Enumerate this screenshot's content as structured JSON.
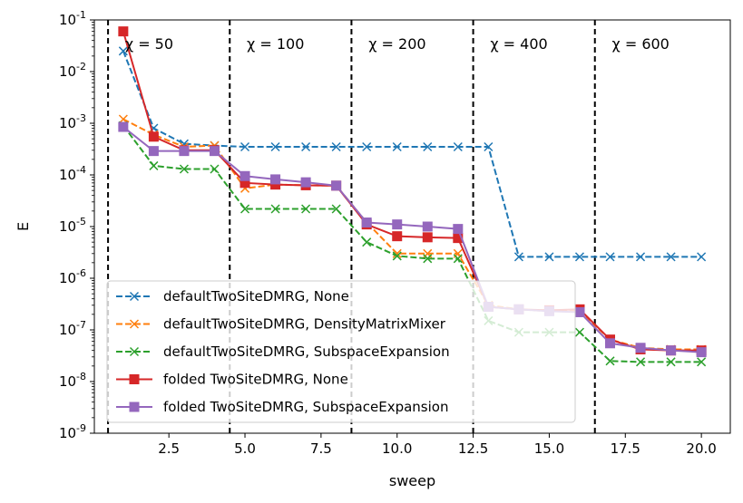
{
  "chart_data": {
    "type": "line",
    "xlabel": "sweep",
    "ylabel": "E",
    "xlim": [
      0.05,
      20.95
    ],
    "ylim": [
      1e-09,
      0.1
    ],
    "yscale": "log",
    "grid": false,
    "legend_position": "lower-left",
    "x_ticks": [
      2.5,
      5.0,
      7.5,
      10.0,
      12.5,
      15.0,
      17.5,
      20.0
    ],
    "x_tick_labels": [
      "2.5",
      "5.0",
      "7.5",
      "10.0",
      "12.5",
      "15.0",
      "17.5",
      "20.0"
    ],
    "y_ticks": [
      1e-09,
      1e-08,
      1e-07,
      1e-06,
      1e-05,
      0.0001,
      0.001,
      0.01,
      0.1
    ],
    "y_tick_exponents": [
      "-9",
      "-8",
      "-7",
      "-6",
      "-5",
      "-4",
      "-3",
      "-2",
      "-1"
    ],
    "vlines": [
      0.5,
      4.5,
      8.5,
      12.5,
      16.5
    ],
    "annotations": [
      {
        "x": 1.0,
        "text": "χ = 50"
      },
      {
        "x": 5.0,
        "text": "χ = 100"
      },
      {
        "x": 9.0,
        "text": "χ = 200"
      },
      {
        "x": 13.0,
        "text": "χ = 400"
      },
      {
        "x": 17.0,
        "text": "χ = 600"
      }
    ],
    "series": [
      {
        "name": "defaultTwoSiteDMRG, None",
        "color": "#1f77b4",
        "linestyle": "dashed",
        "marker": "x",
        "x": [
          1,
          2,
          3,
          4,
          5,
          6,
          7,
          8,
          9,
          10,
          11,
          12,
          13,
          14,
          15,
          16,
          17,
          18,
          19,
          20
        ],
        "values": [
          0.025,
          0.0008,
          0.0004,
          0.00037,
          0.00035,
          0.00035,
          0.00035,
          0.00035,
          0.00035,
          0.00035,
          0.00035,
          0.00035,
          0.00035,
          2.6e-06,
          2.6e-06,
          2.6e-06,
          2.6e-06,
          2.6e-06,
          2.6e-06,
          2.6e-06
        ]
      },
      {
        "name": "defaultTwoSiteDMRG, DensityMatrixMixer",
        "color": "#ff7f0e",
        "linestyle": "dashed",
        "marker": "x",
        "x": [
          1,
          2,
          3,
          4,
          5,
          6,
          7,
          8,
          9,
          10,
          11,
          12,
          13,
          14,
          15,
          16,
          17,
          18,
          19,
          20
        ],
        "values": [
          0.0012,
          0.0006,
          0.00035,
          0.00037,
          5.5e-05,
          6.5e-05,
          6.3e-05,
          6.2e-05,
          1.2e-05,
          3e-06,
          3e-06,
          3e-06,
          3e-07,
          2.5e-07,
          2.3e-07,
          2.3e-07,
          6.5e-08,
          4.5e-08,
          4.2e-08,
          4.2e-08
        ]
      },
      {
        "name": "defaultTwoSiteDMRG, SubspaceExpansion",
        "color": "#2ca02c",
        "linestyle": "dashed",
        "marker": "x",
        "x": [
          1,
          2,
          3,
          4,
          5,
          6,
          7,
          8,
          9,
          10,
          11,
          12,
          13,
          14,
          15,
          16,
          17,
          18,
          19,
          20
        ],
        "values": [
          0.0009,
          0.00015,
          0.00013,
          0.00013,
          2.2e-05,
          2.2e-05,
          2.2e-05,
          2.2e-05,
          5e-06,
          2.7e-06,
          2.4e-06,
          2.4e-06,
          1.5e-07,
          9e-08,
          9e-08,
          9e-08,
          2.5e-08,
          2.4e-08,
          2.4e-08,
          2.4e-08
        ]
      },
      {
        "name": "folded TwoSiteDMRG, None",
        "color": "#d62728",
        "linestyle": "solid",
        "marker": "s",
        "x": [
          1,
          2,
          3,
          4,
          5,
          6,
          7,
          8,
          9,
          10,
          11,
          12,
          13,
          14,
          15,
          16,
          17,
          18,
          19,
          20
        ],
        "values": [
          0.06,
          0.00055,
          0.0003,
          0.0003,
          7e-05,
          6.5e-05,
          6.3e-05,
          6.2e-05,
          1.1e-05,
          6.5e-06,
          6.2e-06,
          6e-06,
          2.8e-07,
          2.5e-07,
          2.4e-07,
          2.5e-07,
          6.5e-08,
          4.2e-08,
          4e-08,
          4e-08
        ]
      },
      {
        "name": "folded TwoSiteDMRG, SubspaceExpansion",
        "color": "#9467bd",
        "linestyle": "solid",
        "marker": "s",
        "x": [
          1,
          2,
          3,
          4,
          5,
          6,
          7,
          8,
          9,
          10,
          11,
          12,
          13,
          14,
          15,
          16,
          17,
          18,
          19,
          20
        ],
        "values": [
          0.00085,
          0.00029,
          0.00029,
          0.00029,
          9.5e-05,
          8.2e-05,
          7.2e-05,
          6.2e-05,
          1.2e-05,
          1.1e-05,
          1e-05,
          9e-06,
          2.8e-07,
          2.5e-07,
          2.3e-07,
          2.2e-07,
          5.5e-08,
          4.5e-08,
          4e-08,
          3.7e-08
        ]
      }
    ]
  }
}
